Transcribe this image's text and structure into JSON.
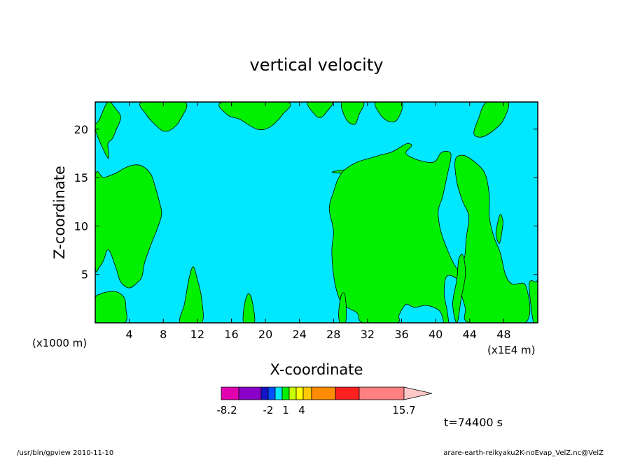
{
  "chart_data": {
    "type": "heatmap",
    "title": "vertical velocity",
    "xlabel": "X-coordinate",
    "ylabel": "Z-coordinate",
    "x_offset_label": "(x1000 m)",
    "x_scale_label": "(x1E4 m)",
    "xlim": [
      0,
      52
    ],
    "ylim": [
      0,
      22.8
    ],
    "x_ticks": [
      4,
      8,
      12,
      16,
      20,
      24,
      28,
      32,
      36,
      40,
      44,
      48
    ],
    "y_ticks": [
      5,
      10,
      15,
      20
    ],
    "background_color": "#00e8ff",
    "region_color": "#00f000",
    "colorbar": {
      "tick_labels": [
        "-8.2",
        "-2",
        "1",
        "4",
        "15.7"
      ],
      "tick_values": [
        -8.2,
        -2,
        1,
        4,
        15.7
      ],
      "colors": [
        "#e000b0",
        "#8a00c8",
        "#1414c8",
        "#0050ff",
        "#00e8ff",
        "#00f000",
        "#c8ff00",
        "#ffff00",
        "#ffc800",
        "#ff8c00",
        "#ff2020",
        "#ff8080",
        "#ffc8c8"
      ]
    },
    "time_label": "t=74400 s",
    "regions": [
      {
        "name": "b1",
        "points": [
          [
            0,
            20
          ],
          [
            0.5,
            21
          ],
          [
            1.5,
            22.8
          ],
          [
            2.5,
            22
          ],
          [
            3,
            21.2
          ],
          [
            2.5,
            20
          ],
          [
            2,
            19
          ],
          [
            1.5,
            18.5
          ],
          [
            1.5,
            17
          ]
        ]
      },
      {
        "name": "b2",
        "points": [
          [
            5.5,
            22.8
          ],
          [
            6,
            21.5
          ],
          [
            7,
            20.5
          ],
          [
            8,
            19.8
          ],
          [
            9,
            20
          ],
          [
            10,
            21
          ],
          [
            10.5,
            22.8
          ]
        ]
      },
      {
        "name": "b3",
        "points": [
          [
            15,
            22.8
          ],
          [
            15.5,
            21.5
          ],
          [
            17,
            21
          ],
          [
            19,
            20
          ],
          [
            20.5,
            20.2
          ],
          [
            22,
            21.5
          ],
          [
            22.5,
            22.8
          ]
        ]
      },
      {
        "name": "b4",
        "points": [
          [
            25,
            22.8
          ],
          [
            25.8,
            21.5
          ],
          [
            26.5,
            21.2
          ],
          [
            27.2,
            21.8
          ],
          [
            27.8,
            22.8
          ]
        ]
      },
      {
        "name": "b5",
        "points": [
          [
            29,
            22.8
          ],
          [
            29.5,
            21
          ],
          [
            30.5,
            20.5
          ],
          [
            31,
            21.5
          ],
          [
            31.5,
            22.8
          ]
        ]
      },
      {
        "name": "b6",
        "points": [
          [
            33,
            22.8
          ],
          [
            33.5,
            21.5
          ],
          [
            34.5,
            20.8
          ],
          [
            35.5,
            21
          ],
          [
            36,
            22.8
          ]
        ]
      },
      {
        "name": "b7",
        "points": [
          [
            48.5,
            22.8
          ],
          [
            48,
            21
          ],
          [
            47,
            20
          ],
          [
            45.5,
            19.2
          ],
          [
            44.5,
            19.5
          ],
          [
            45,
            21
          ],
          [
            46,
            22.8
          ]
        ]
      },
      {
        "name": "b8",
        "points": [
          [
            28,
            15.5
          ],
          [
            29.5,
            15.8
          ],
          [
            31,
            15.4
          ],
          [
            31.8,
            14.3
          ],
          [
            32.2,
            12.5
          ],
          [
            32.6,
            10
          ],
          [
            33.2,
            7
          ],
          [
            33.6,
            5
          ],
          [
            34,
            3.5
          ],
          [
            34.8,
            3.8
          ],
          [
            35.2,
            6
          ],
          [
            36,
            9
          ],
          [
            36.5,
            12
          ],
          [
            36.7,
            14
          ],
          [
            36.3,
            15.6
          ],
          [
            35.5,
            16.3
          ],
          [
            34.5,
            15.8
          ],
          [
            33.5,
            15.4
          ]
        ]
      },
      {
        "name": "b9",
        "points": [
          [
            36.5,
            17.5
          ],
          [
            38,
            16.8
          ],
          [
            39.8,
            16.6
          ],
          [
            40.7,
            17.6
          ],
          [
            41.8,
            17.4
          ],
          [
            41.3,
            15
          ],
          [
            40.8,
            13
          ],
          [
            40.3,
            11.5
          ],
          [
            40.6,
            9.5
          ],
          [
            41.4,
            7.5
          ],
          [
            42.2,
            6
          ],
          [
            42.8,
            5.5
          ],
          [
            43.4,
            6.8
          ],
          [
            43.6,
            8.8
          ],
          [
            43.9,
            11
          ],
          [
            43.2,
            12.5
          ],
          [
            42.5,
            14.5
          ],
          [
            42.3,
            16.8
          ],
          [
            43.2,
            17.3
          ],
          [
            44.6,
            16.6
          ],
          [
            45.8,
            15.4
          ],
          [
            46.3,
            13.2
          ],
          [
            46.3,
            11
          ],
          [
            46.8,
            9
          ],
          [
            47.6,
            7.2
          ],
          [
            48.2,
            5
          ],
          [
            49,
            4
          ],
          [
            50.6,
            3.8
          ],
          [
            50.5,
            0
          ],
          [
            44,
            0
          ],
          [
            43.5,
            1.5
          ],
          [
            43,
            3
          ],
          [
            42.5,
            4.5
          ],
          [
            41.3,
            4.8
          ],
          [
            41,
            3
          ],
          [
            41.3,
            1.5
          ],
          [
            41.5,
            0
          ],
          [
            41,
            0
          ],
          [
            40.5,
            1.2
          ],
          [
            39,
            1.8
          ],
          [
            37.5,
            1.6
          ],
          [
            36.5,
            1.9
          ],
          [
            35.7,
            0.8
          ],
          [
            35.4,
            0
          ],
          [
            31.5,
            0
          ],
          [
            30.8,
            1
          ],
          [
            29.8,
            1.5
          ],
          [
            29,
            2
          ],
          [
            28.4,
            3.2
          ],
          [
            28,
            5
          ],
          [
            27.8,
            7.5
          ],
          [
            28,
            9.5
          ],
          [
            27.5,
            11.8
          ],
          [
            28,
            13.5
          ],
          [
            28.5,
            14.8
          ],
          [
            29.3,
            15.8
          ],
          [
            30.8,
            16.6
          ],
          [
            32.3,
            17
          ],
          [
            33.4,
            17.3
          ],
          [
            34.7,
            17.6
          ],
          [
            35.6,
            18
          ],
          [
            36.6,
            18.5
          ],
          [
            37.2,
            18.3
          ]
        ]
      },
      {
        "name": "b10",
        "points": [
          [
            42.5,
            0
          ],
          [
            43,
            2.5
          ],
          [
            43.5,
            5
          ],
          [
            43.2,
            7
          ],
          [
            42.7,
            6.5
          ],
          [
            42.5,
            4.5
          ],
          [
            42,
            2
          ]
        ]
      },
      {
        "name": "b11",
        "points": [
          [
            1,
            15
          ],
          [
            2.5,
            15.5
          ],
          [
            3.5,
            16
          ],
          [
            4.5,
            16.3
          ],
          [
            5.5,
            16.2
          ],
          [
            6.5,
            15.4
          ],
          [
            7,
            14.2
          ],
          [
            7.5,
            12.6
          ],
          [
            7.8,
            11.2
          ],
          [
            7.2,
            9.5
          ],
          [
            6.6,
            8.2
          ],
          [
            5.8,
            6.2
          ],
          [
            5.5,
            4.8
          ],
          [
            5,
            4.2
          ],
          [
            4,
            3.6
          ],
          [
            3,
            4.2
          ],
          [
            2.5,
            5.5
          ],
          [
            1.8,
            7.2
          ],
          [
            1.4,
            7.5
          ],
          [
            1,
            6.5
          ],
          [
            0.5,
            5.8
          ],
          [
            0,
            6
          ],
          [
            0,
            15
          ]
        ]
      },
      {
        "name": "b12",
        "points": [
          [
            10,
            0
          ],
          [
            10.5,
            2
          ],
          [
            11,
            4.5
          ],
          [
            11.5,
            5.8
          ],
          [
            12,
            4.5
          ],
          [
            12.5,
            2.5
          ],
          [
            12.5,
            0
          ]
        ]
      },
      {
        "name": "b13",
        "points": [
          [
            3.4,
            0
          ],
          [
            3.6,
            1.5
          ],
          [
            3.4,
            2.6
          ],
          [
            2.5,
            3.2
          ],
          [
            1.5,
            3.2
          ],
          [
            0.7,
            3
          ],
          [
            0,
            2.5
          ],
          [
            0,
            0
          ]
        ]
      },
      {
        "name": "b14",
        "points": [
          [
            17.5,
            0
          ],
          [
            17.4,
            1
          ],
          [
            17.7,
            2.5
          ],
          [
            18.1,
            3
          ],
          [
            18.5,
            2
          ],
          [
            18.7,
            0
          ]
        ]
      },
      {
        "name": "b15",
        "points": [
          [
            28.8,
            0
          ],
          [
            28.6,
            1
          ],
          [
            28.9,
            2.8
          ],
          [
            29.3,
            3
          ],
          [
            29.5,
            1.5
          ],
          [
            29.4,
            0
          ]
        ]
      },
      {
        "name": "b16",
        "points": [
          [
            47.5,
            8.2
          ],
          [
            47.8,
            9.5
          ],
          [
            47.9,
            10.5
          ],
          [
            47.6,
            11.2
          ],
          [
            47.2,
            10
          ],
          [
            47.1,
            9
          ]
        ]
      },
      {
        "name": "b17",
        "points": [
          [
            51,
            4
          ],
          [
            51.8,
            4.2
          ],
          [
            52,
            4.1
          ],
          [
            52,
            0
          ],
          [
            51.5,
            0
          ]
        ]
      }
    ]
  },
  "footer": {
    "left": "/usr/bin/gpview   2010-11-10",
    "right": "arare-earth-reikyaku2K-noEvap_VelZ.nc@VelZ"
  }
}
